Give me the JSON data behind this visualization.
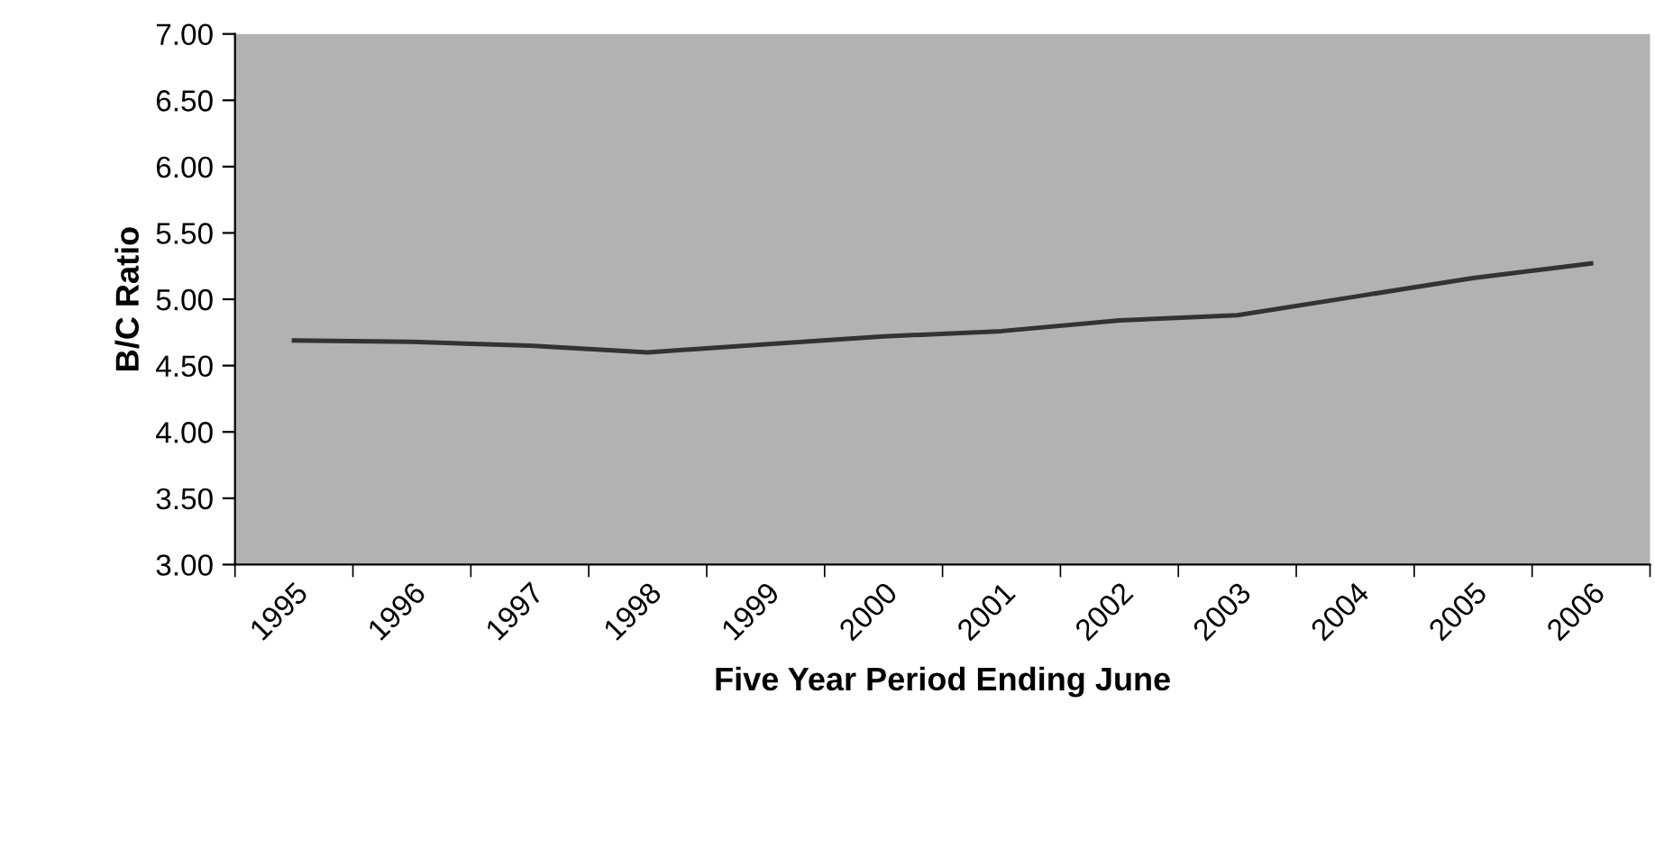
{
  "chart_data": {
    "type": "line",
    "xlabel": "Five Year Period Ending June",
    "ylabel": "B/C Ratio",
    "categories": [
      "1995",
      "1996",
      "1997",
      "1998",
      "1999",
      "2000",
      "2001",
      "2002",
      "2003",
      "2004",
      "2005",
      "2006"
    ],
    "series": [
      {
        "color": "#333333",
        "values": [
          4.69,
          4.68,
          4.65,
          4.6,
          4.66,
          4.72,
          4.76,
          4.84,
          4.88,
          5.02,
          5.16,
          5.27
        ]
      }
    ],
    "ylim": [
      3.0,
      7.0
    ],
    "yticks": [
      {
        "value": 3.0,
        "label": "3.00"
      },
      {
        "value": 3.5,
        "label": "3.50"
      },
      {
        "value": 4.0,
        "label": "4.00"
      },
      {
        "value": 4.5,
        "label": "4.50"
      },
      {
        "value": 5.0,
        "label": "5.00"
      },
      {
        "value": 5.5,
        "label": "5.50"
      },
      {
        "value": 6.0,
        "label": "6.00"
      },
      {
        "value": 6.5,
        "label": "6.50"
      },
      {
        "value": 7.0,
        "label": "7.00"
      }
    ],
    "grid": false,
    "legend": false,
    "marker": "none",
    "line_style": "solid"
  }
}
